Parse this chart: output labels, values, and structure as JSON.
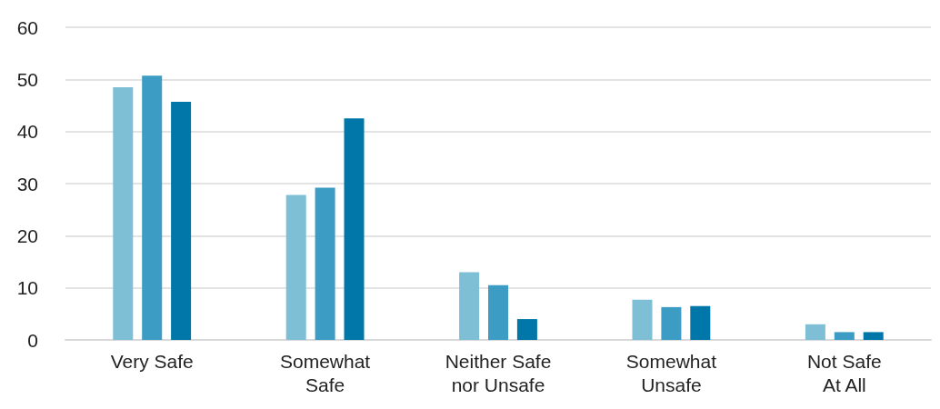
{
  "chart_data": {
    "type": "bar",
    "categories": [
      "Very Safe",
      "Somewhat\nSafe",
      "Neither Safe\nnor Unsafe",
      "Somewhat\nUnsafe",
      "Not Safe\nAt All"
    ],
    "series": [
      {
        "color": "#7fbfd6",
        "values": [
          48.5,
          27.8,
          13,
          7.7,
          3
        ]
      },
      {
        "color": "#3d9cc4",
        "values": [
          50.7,
          29.2,
          10.5,
          6.3,
          1.5
        ]
      },
      {
        "color": "#0077a8",
        "values": [
          45.7,
          42.5,
          4,
          6.5,
          1.5
        ]
      }
    ],
    "ylim": [
      0,
      60
    ],
    "yticks": [
      0,
      10,
      20,
      30,
      40,
      50,
      60
    ],
    "grid": "y"
  }
}
